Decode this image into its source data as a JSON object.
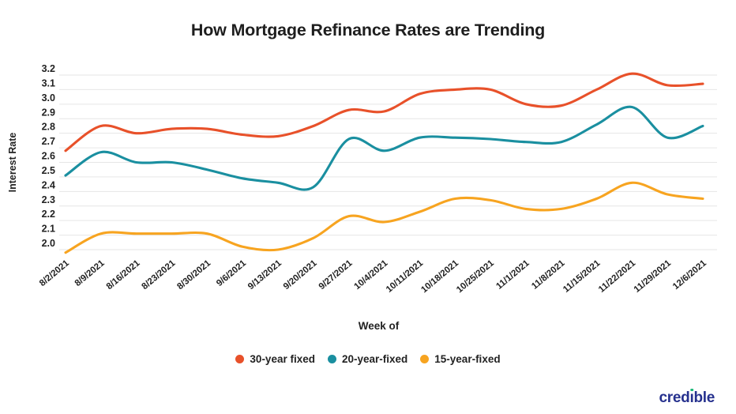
{
  "title": "How Mortgage Refinance Rates are Trending",
  "chart_data": {
    "type": "line",
    "title": "How Mortgage Refinance Rates are Trending",
    "xlabel": "Week of",
    "ylabel": "Interest Rate",
    "ylim": [
      2.0,
      3.2
    ],
    "y_ticks": [
      "3.2",
      "3.1",
      "3.0",
      "2.9",
      "2.8",
      "2.7",
      "2.6",
      "2.5",
      "2.4",
      "2.3",
      "2.2",
      "2.1",
      "2.0"
    ],
    "grid": "horizontal-only",
    "legend_position": "bottom-center",
    "line_style": "smooth",
    "categories": [
      "8/2/2021",
      "8/9/2021",
      "8/16/2021",
      "8/23/2021",
      "8/30/2021",
      "9/6/2021",
      "9/13/2021",
      "9/20/2021",
      "9/27/2021",
      "10/4/2021",
      "10/11/2021",
      "10/18/2021",
      "10/25/2021",
      "11/1/2021",
      "11/8/2021",
      "11/15/2021",
      "11/22/2021",
      "11/29/2021",
      "12/6/2021"
    ],
    "series": [
      {
        "name": "30-year fixed",
        "color": "#e8512a",
        "values": [
          2.68,
          2.85,
          2.8,
          2.83,
          2.83,
          2.79,
          2.78,
          2.85,
          2.96,
          2.95,
          3.07,
          3.1,
          3.1,
          3.0,
          2.99,
          3.1,
          3.21,
          3.13,
          3.14
        ]
      },
      {
        "name": "20-year-fixed",
        "color": "#1a8fa0",
        "values": [
          2.51,
          2.67,
          2.6,
          2.6,
          2.55,
          2.49,
          2.46,
          2.43,
          2.76,
          2.68,
          2.77,
          2.77,
          2.76,
          2.74,
          2.74,
          2.86,
          2.98,
          2.77,
          2.85
        ]
      },
      {
        "name": "15-year-fixed",
        "color": "#f7a420",
        "values": [
          1.98,
          2.11,
          2.11,
          2.11,
          2.11,
          2.02,
          2.0,
          2.08,
          2.23,
          2.19,
          2.26,
          2.35,
          2.34,
          2.28,
          2.28,
          2.35,
          2.46,
          2.38,
          2.35
        ]
      }
    ]
  },
  "colors": {
    "gridline": "#e6e6e6",
    "axis_text": "#222222",
    "title_text": "#1e1e1e",
    "brand_navy": "#26318e",
    "brand_green": "#18b777"
  },
  "footer": {
    "logo_text": "credible",
    "logo_parts": [
      "cred",
      "ı",
      "ble"
    ]
  }
}
